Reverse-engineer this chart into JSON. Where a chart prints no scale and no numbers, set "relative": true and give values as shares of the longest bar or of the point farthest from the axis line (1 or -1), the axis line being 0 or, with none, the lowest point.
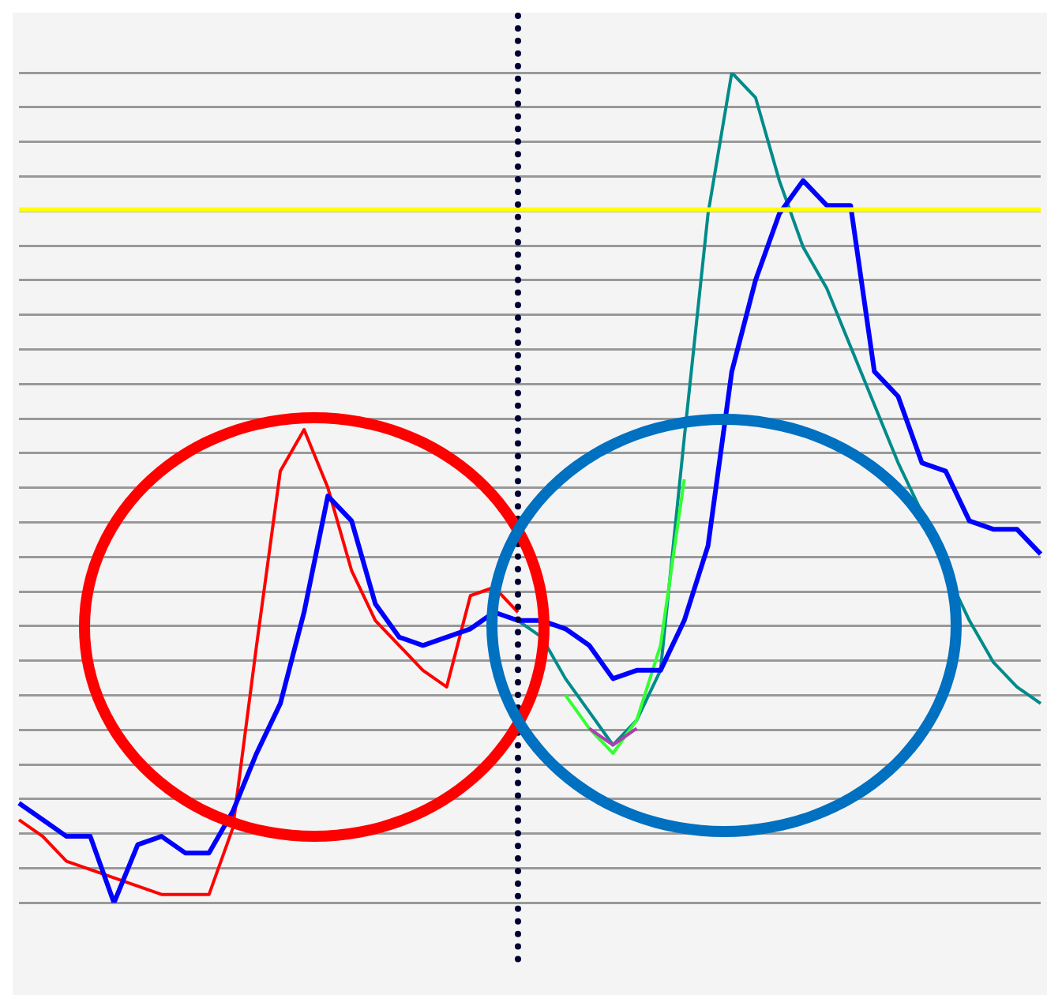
{
  "chart_data": {
    "type": "line",
    "relative": true,
    "grid": "y",
    "legend": false,
    "marker": "none",
    "line_style": "solid",
    "categories": [
      null,
      null,
      null,
      null,
      null,
      null,
      null,
      null,
      null,
      null,
      null,
      null,
      null,
      null,
      null,
      null,
      null,
      null,
      null,
      null,
      null,
      null,
      null,
      null,
      null,
      null,
      null,
      null,
      null,
      null,
      null,
      null,
      null,
      null,
      null,
      null,
      null,
      null,
      null,
      null,
      null,
      null,
      null,
      null
    ],
    "series": [
      {
        "color": "#ff0000",
        "values": [
          0.1,
          0.08,
          0.05,
          0.04,
          0.03,
          0.02,
          0.01,
          0.01,
          0.01,
          0.09,
          0.31,
          0.52,
          0.57,
          0.5,
          0.4,
          0.34,
          0.31,
          0.28,
          0.26,
          0.37,
          0.38,
          0.35,
          null,
          null,
          null,
          null,
          null,
          null,
          null,
          null,
          null,
          null,
          null,
          null,
          null,
          null,
          null,
          null,
          null,
          null,
          null,
          null,
          null,
          null
        ]
      },
      {
        "color": "#008b8b",
        "values": [
          null,
          null,
          null,
          null,
          null,
          null,
          null,
          null,
          null,
          null,
          null,
          null,
          null,
          null,
          null,
          null,
          null,
          null,
          null,
          null,
          null,
          0.34,
          0.32,
          0.27,
          0.23,
          0.19,
          0.22,
          0.28,
          0.56,
          0.83,
          1.0,
          0.97,
          0.87,
          0.79,
          0.74,
          0.67,
          0.6,
          0.53,
          0.47,
          0.4,
          0.34,
          0.29,
          0.26,
          0.24
        ]
      },
      {
        "color": "#33ff33",
        "values": [
          null,
          null,
          null,
          null,
          null,
          null,
          null,
          null,
          null,
          null,
          null,
          null,
          null,
          null,
          null,
          null,
          null,
          null,
          null,
          null,
          null,
          null,
          null,
          0.25,
          0.21,
          0.18,
          0.22,
          0.31,
          0.51,
          null,
          null,
          null,
          null,
          null,
          null,
          null,
          null,
          null,
          null,
          null,
          null,
          null,
          null,
          null
        ]
      },
      {
        "color": "#b03cb0",
        "values": [
          null,
          null,
          null,
          null,
          null,
          null,
          null,
          null,
          null,
          null,
          null,
          null,
          null,
          null,
          null,
          null,
          null,
          null,
          null,
          null,
          null,
          null,
          null,
          null,
          0.21,
          0.19,
          0.21,
          null,
          null,
          null,
          null,
          null,
          null,
          null,
          null,
          null,
          null,
          null,
          null,
          null,
          null,
          null,
          null,
          null
        ]
      },
      {
        "color": "#0000ff",
        "values": [
          0.12,
          0.1,
          0.08,
          0.08,
          0.0,
          0.07,
          0.08,
          0.06,
          0.06,
          0.11,
          0.18,
          0.24,
          0.35,
          0.49,
          0.46,
          0.36,
          0.32,
          0.31,
          0.32,
          0.33,
          0.35,
          0.34,
          0.34,
          0.33,
          0.31,
          0.27,
          0.28,
          0.28,
          0.34,
          0.43,
          0.64,
          0.75,
          0.83,
          0.87,
          0.84,
          0.84,
          0.64,
          0.61,
          0.53,
          0.52,
          0.46,
          0.45,
          0.45,
          0.42
        ]
      }
    ],
    "ref_lines": [
      {
        "axis": "y",
        "value": 0.835,
        "color": "#ffff00",
        "line_style": "solid"
      }
    ]
  }
}
